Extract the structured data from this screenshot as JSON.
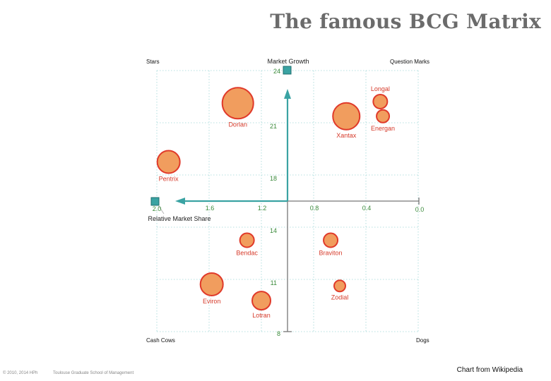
{
  "title": "The famous BCG Matrix",
  "quadrants": {
    "top_left": "Stars",
    "top_right": "Question Marks",
    "bottom_left": "Cash Cows",
    "bottom_right": "Dogs"
  },
  "footer": {
    "copyright": "© 2010, 2014 HPh",
    "school": "Toulouse Graduate School of Management",
    "credit": "Chart from Wikipedia"
  },
  "colors": {
    "bubble_fill": "#f19d5e",
    "bubble_stroke": "#e03a2a",
    "label": "#d63a2a",
    "axis_arrow": "#3aa3a3",
    "tick_label": "#3a8a3a",
    "grid": "#9fd6d6",
    "title": "#6b6b6b"
  },
  "chart_data": {
    "type": "scatter",
    "title": "",
    "xlabel": "Relative Market Share",
    "ylabel": "Market Growth",
    "xlim": [
      2.0,
      0.0
    ],
    "ylim": [
      8,
      24
    ],
    "x_reversed": true,
    "x_ticks": [
      "2.0",
      "1.6",
      "1.2",
      "0.8",
      "0.4",
      "0.0"
    ],
    "y_ticks": [
      "8",
      "11",
      "14",
      "18",
      "21",
      "24"
    ],
    "grid": true,
    "points": [
      {
        "name": "Dorlan",
        "x": 1.38,
        "y": 22.0,
        "size": 22
      },
      {
        "name": "Longal",
        "x": 0.29,
        "y": 22.1,
        "size": 10
      },
      {
        "name": "Energan",
        "x": 0.27,
        "y": 21.2,
        "size": 9
      },
      {
        "name": "Xantax",
        "x": 0.55,
        "y": 21.2,
        "size": 19
      },
      {
        "name": "Pentrix",
        "x": 1.91,
        "y": 18.4,
        "size": 16
      },
      {
        "name": "Bendac",
        "x": 1.31,
        "y": 13.6,
        "size": 10
      },
      {
        "name": "Braviton",
        "x": 0.67,
        "y": 13.6,
        "size": 10
      },
      {
        "name": "Eviron",
        "x": 1.58,
        "y": 10.9,
        "size": 16
      },
      {
        "name": "Zodial",
        "x": 0.6,
        "y": 10.8,
        "size": 8
      },
      {
        "name": "Lotran",
        "x": 1.2,
        "y": 9.9,
        "size": 13
      }
    ]
  }
}
